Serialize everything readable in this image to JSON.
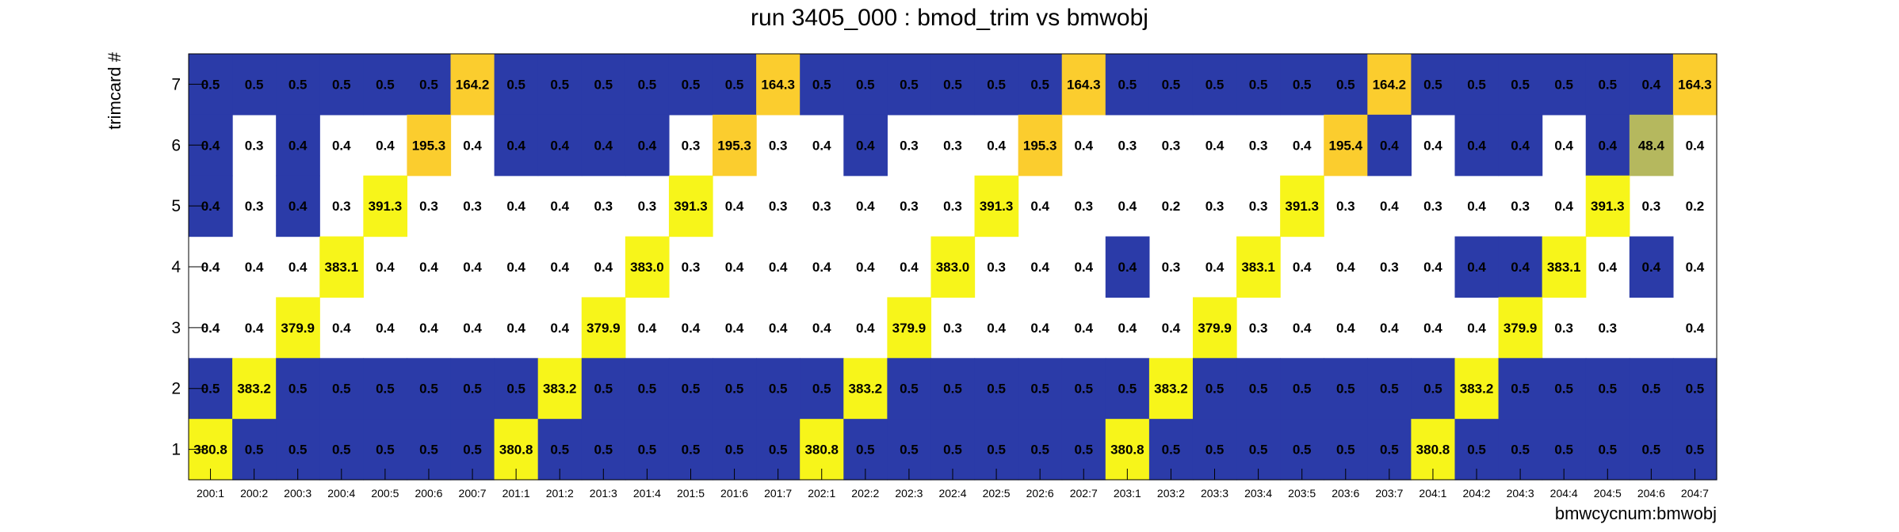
{
  "chart_data": {
    "type": "heatmap",
    "title": "run 3405_000 : bmod_trim vs bmwobj",
    "xlabel": "bmwcycnum:bmwobj",
    "ylabel": "trimcard #",
    "x_categories": [
      "200:1",
      "200:2",
      "200:3",
      "200:4",
      "200:5",
      "200:6",
      "200:7",
      "201:1",
      "201:2",
      "201:3",
      "201:4",
      "201:5",
      "201:6",
      "201:7",
      "202:1",
      "202:2",
      "202:3",
      "202:4",
      "202:5",
      "202:6",
      "202:7",
      "203:1",
      "203:2",
      "203:3",
      "203:4",
      "203:5",
      "203:6",
      "203:7",
      "204:1",
      "204:2",
      "204:3",
      "204:4",
      "204:5",
      "204:6",
      "204:7"
    ],
    "y_categories": [
      "1",
      "2",
      "3",
      "4",
      "5",
      "6",
      "7"
    ],
    "grid": false,
    "legend": "none",
    "colors": {
      "low": "#2b3ba8",
      "mid": "#b5b85e",
      "high_a": "#fbcd2e",
      "high_b": "#f7f51a",
      "empty": "#ffffff"
    },
    "rows": [
      {
        "y": "7",
        "values": [
          "0.5",
          "0.5",
          "0.5",
          "0.5",
          "0.5",
          "0.5",
          "164.2",
          "0.5",
          "0.5",
          "0.5",
          "0.5",
          "0.5",
          "0.5",
          "164.3",
          "0.5",
          "0.5",
          "0.5",
          "0.5",
          "0.5",
          "0.5",
          "164.3",
          "0.5",
          "0.5",
          "0.5",
          "0.5",
          "0.5",
          "0.5",
          "164.2",
          "0.5",
          "0.5",
          "0.5",
          "0.5",
          "0.5",
          "0.4",
          "164.3"
        ],
        "colors": [
          "b",
          "b",
          "b",
          "b",
          "b",
          "b",
          "o",
          "b",
          "b",
          "b",
          "b",
          "b",
          "b",
          "o",
          "b",
          "b",
          "b",
          "b",
          "b",
          "b",
          "o",
          "b",
          "b",
          "b",
          "b",
          "b",
          "b",
          "o",
          "b",
          "b",
          "b",
          "b",
          "b",
          "b",
          "o"
        ]
      },
      {
        "y": "6",
        "values": [
          "0.4",
          "0.3",
          "0.4",
          "0.4",
          "0.4",
          "195.3",
          "0.4",
          "0.4",
          "0.4",
          "0.4",
          "0.4",
          "0.3",
          "195.3",
          "0.3",
          "0.4",
          "0.4",
          "0.3",
          "0.3",
          "0.4",
          "195.3",
          "0.4",
          "0.3",
          "0.3",
          "0.4",
          "0.3",
          "0.4",
          "195.4",
          "0.4",
          "0.4",
          "0.4",
          "0.4",
          "0.4",
          "0.4",
          "48.4",
          "0.4"
        ],
        "colors": [
          "b",
          "w",
          "b",
          "w",
          "w",
          "o",
          "w",
          "b",
          "b",
          "b",
          "b",
          "w",
          "o",
          "w",
          "w",
          "b",
          "w",
          "w",
          "w",
          "o",
          "w",
          "w",
          "w",
          "w",
          "w",
          "w",
          "o",
          "b",
          "w",
          "b",
          "b",
          "w",
          "b",
          "g",
          "w"
        ]
      },
      {
        "y": "5",
        "values": [
          "0.4",
          "0.3",
          "0.4",
          "0.3",
          "391.3",
          "0.3",
          "0.3",
          "0.4",
          "0.4",
          "0.3",
          "0.3",
          "391.3",
          "0.4",
          "0.3",
          "0.3",
          "0.4",
          "0.3",
          "0.3",
          "391.3",
          "0.4",
          "0.3",
          "0.4",
          "0.2",
          "0.3",
          "0.3",
          "391.3",
          "0.3",
          "0.4",
          "0.3",
          "0.4",
          "0.3",
          "0.4",
          "391.3",
          "0.3",
          "0.2"
        ],
        "colors": [
          "b",
          "w",
          "b",
          "w",
          "y",
          "w",
          "w",
          "w",
          "w",
          "w",
          "w",
          "y",
          "w",
          "w",
          "w",
          "w",
          "w",
          "w",
          "y",
          "w",
          "w",
          "w",
          "w",
          "w",
          "w",
          "y",
          "w",
          "w",
          "w",
          "w",
          "w",
          "w",
          "y",
          "w",
          "w"
        ]
      },
      {
        "y": "4",
        "values": [
          "0.4",
          "0.4",
          "0.4",
          "383.1",
          "0.4",
          "0.4",
          "0.4",
          "0.4",
          "0.4",
          "0.4",
          "383.0",
          "0.3",
          "0.4",
          "0.4",
          "0.4",
          "0.4",
          "0.4",
          "383.0",
          "0.3",
          "0.4",
          "0.4",
          "0.4",
          "0.3",
          "0.4",
          "383.1",
          "0.4",
          "0.4",
          "0.3",
          "0.4",
          "0.4",
          "0.4",
          "383.1",
          "0.4",
          "0.4",
          "0.4"
        ],
        "colors": [
          "w",
          "w",
          "w",
          "y",
          "w",
          "w",
          "w",
          "w",
          "w",
          "w",
          "y",
          "w",
          "w",
          "w",
          "w",
          "w",
          "w",
          "y",
          "w",
          "w",
          "w",
          "b",
          "w",
          "w",
          "y",
          "w",
          "w",
          "w",
          "w",
          "b",
          "b",
          "y",
          "w",
          "b",
          "w"
        ]
      },
      {
        "y": "3",
        "values": [
          "0.4",
          "0.4",
          "379.9",
          "0.4",
          "0.4",
          "0.4",
          "0.4",
          "0.4",
          "0.4",
          "379.9",
          "0.4",
          "0.4",
          "0.4",
          "0.4",
          "0.4",
          "0.4",
          "379.9",
          "0.3",
          "0.4",
          "0.4",
          "0.4",
          "0.4",
          "0.4",
          "379.9",
          "0.3",
          "0.4",
          "0.4",
          "0.4",
          "0.4",
          "0.4",
          "379.9",
          "0.3",
          "0.3",
          "",
          "0.4"
        ],
        "colors": [
          "w",
          "w",
          "y",
          "w",
          "w",
          "w",
          "w",
          "w",
          "w",
          "y",
          "w",
          "w",
          "w",
          "w",
          "w",
          "w",
          "y",
          "w",
          "w",
          "w",
          "w",
          "w",
          "w",
          "y",
          "w",
          "w",
          "w",
          "w",
          "w",
          "w",
          "y",
          "w",
          "w",
          "w",
          "w"
        ]
      },
      {
        "y": "2",
        "values": [
          "0.5",
          "383.2",
          "0.5",
          "0.5",
          "0.5",
          "0.5",
          "0.5",
          "0.5",
          "383.2",
          "0.5",
          "0.5",
          "0.5",
          "0.5",
          "0.5",
          "0.5",
          "383.2",
          "0.5",
          "0.5",
          "0.5",
          "0.5",
          "0.5",
          "0.5",
          "383.2",
          "0.5",
          "0.5",
          "0.5",
          "0.5",
          "0.5",
          "0.5",
          "383.2",
          "0.5",
          "0.5",
          "0.5",
          "0.5",
          "0.5"
        ],
        "colors": [
          "b",
          "y",
          "b",
          "b",
          "b",
          "b",
          "b",
          "b",
          "y",
          "b",
          "b",
          "b",
          "b",
          "b",
          "b",
          "y",
          "b",
          "b",
          "b",
          "b",
          "b",
          "b",
          "y",
          "b",
          "b",
          "b",
          "b",
          "b",
          "b",
          "y",
          "b",
          "b",
          "b",
          "b",
          "b"
        ]
      },
      {
        "y": "1",
        "values": [
          "380.8",
          "0.5",
          "0.5",
          "0.5",
          "0.5",
          "0.5",
          "0.5",
          "380.8",
          "0.5",
          "0.5",
          "0.5",
          "0.5",
          "0.5",
          "0.5",
          "380.8",
          "0.5",
          "0.5",
          "0.5",
          "0.5",
          "0.5",
          "0.5",
          "380.8",
          "0.5",
          "0.5",
          "0.5",
          "0.5",
          "0.5",
          "0.5",
          "380.8",
          "0.5",
          "0.5",
          "0.5",
          "0.5",
          "0.5",
          "0.5"
        ],
        "colors": [
          "y",
          "b",
          "b",
          "b",
          "b",
          "b",
          "b",
          "y",
          "b",
          "b",
          "b",
          "b",
          "b",
          "b",
          "y",
          "b",
          "b",
          "b",
          "b",
          "b",
          "b",
          "y",
          "b",
          "b",
          "b",
          "b",
          "b",
          "b",
          "y",
          "b",
          "b",
          "b",
          "b",
          "b",
          "b"
        ]
      }
    ]
  }
}
